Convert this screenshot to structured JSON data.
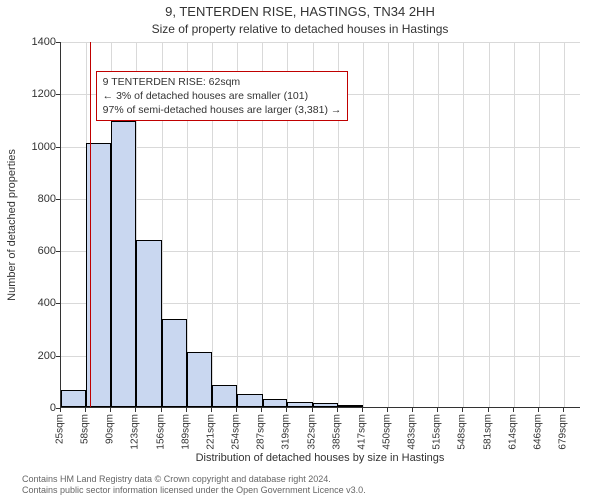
{
  "title": "9, TENTERDEN RISE, HASTINGS, TN34 2HH",
  "subtitle": "Size of property relative to detached houses in Hastings",
  "y_axis_title": "Number of detached properties",
  "x_axis_title": "Distribution of detached houses by size in Hastings",
  "footer_line1": "Contains HM Land Registry data © Crown copyright and database right 2024.",
  "footer_line2": "Contains public sector information licensed under the Open Government Licence v3.0.",
  "chart": {
    "type": "histogram",
    "xlim": [
      25,
      700
    ],
    "ylim": [
      0,
      1400
    ],
    "ytick_step": 200,
    "yticks": [
      0,
      200,
      400,
      600,
      800,
      1000,
      1200,
      1400
    ],
    "xtick_step_sqm": 32.65,
    "xtick_labels": [
      "25sqm",
      "58sqm",
      "90sqm",
      "123sqm",
      "156sqm",
      "189sqm",
      "221sqm",
      "254sqm",
      "287sqm",
      "319sqm",
      "352sqm",
      "385sqm",
      "417sqm",
      "450sqm",
      "483sqm",
      "515sqm",
      "548sqm",
      "581sqm",
      "614sqm",
      "646sqm",
      "679sqm"
    ],
    "grid_color": "#d9d9d9",
    "background_color": "#ffffff",
    "bar_fill": "#c9d7f0",
    "bar_stroke": "#000000",
    "bar_stroke_width": 0.5,
    "bar_opacity": 1.0,
    "bars": [
      {
        "x_start": 25,
        "x_end": 58,
        "count": 65
      },
      {
        "x_start": 58,
        "x_end": 90,
        "count": 1010
      },
      {
        "x_start": 90,
        "x_end": 123,
        "count": 1095
      },
      {
        "x_start": 123,
        "x_end": 156,
        "count": 640
      },
      {
        "x_start": 156,
        "x_end": 189,
        "count": 335
      },
      {
        "x_start": 189,
        "x_end": 221,
        "count": 210
      },
      {
        "x_start": 221,
        "x_end": 254,
        "count": 85
      },
      {
        "x_start": 254,
        "x_end": 287,
        "count": 50
      },
      {
        "x_start": 287,
        "x_end": 319,
        "count": 30
      },
      {
        "x_start": 319,
        "x_end": 352,
        "count": 20
      },
      {
        "x_start": 352,
        "x_end": 385,
        "count": 15
      },
      {
        "x_start": 385,
        "x_end": 417,
        "count": 5
      }
    ],
    "reference_line": {
      "x_value": 62,
      "color": "#c00000",
      "width": 1.5
    },
    "annotation": {
      "border_color": "#c00000",
      "border_width": 1,
      "bg": "#ffffff",
      "font_size": 10.5,
      "x_sqm": 70,
      "y_count": 1290,
      "lines": [
        "9 TENTERDEN RISE: 62sqm",
        "← 3% of detached houses are smaller (101)",
        "97% of semi-detached houses are larger (3,381) →"
      ]
    }
  }
}
